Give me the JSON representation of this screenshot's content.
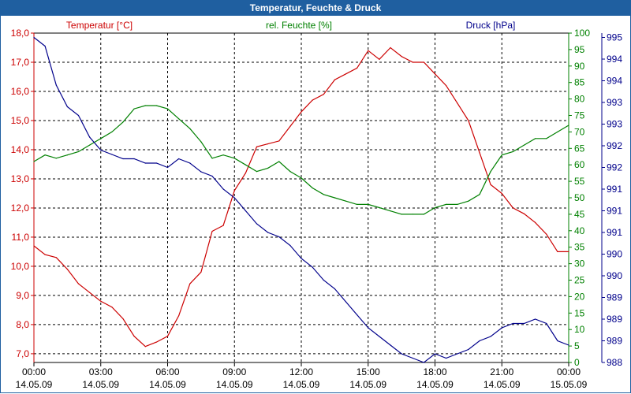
{
  "window_title": "Temperatur, Feuchte & Druck",
  "chart_data": {
    "type": "line",
    "title": "Temperatur, Feuchte & Druck",
    "x_tick_labels": [
      {
        "time": "00:00",
        "date": "14.05.09"
      },
      {
        "time": "03:00",
        "date": "14.05.09"
      },
      {
        "time": "06:00",
        "date": "14.05.09"
      },
      {
        "time": "09:00",
        "date": "14.05.09"
      },
      {
        "time": "12:00",
        "date": "14.05.09"
      },
      {
        "time": "15:00",
        "date": "14.05.09"
      },
      {
        "time": "18:00",
        "date": "14.05.09"
      },
      {
        "time": "21:00",
        "date": "14.05.09"
      },
      {
        "time": "00:00",
        "date": "15.05.09"
      }
    ],
    "x_range_hours": [
      0,
      24
    ],
    "grid": true,
    "axes": {
      "temperature": {
        "label": "Temperatur [°C]",
        "color": "#cc0000",
        "range": [
          6.7,
          18.0
        ],
        "ticks": [
          "7,0",
          "8,0",
          "9,0",
          "10,0",
          "11,0",
          "12,0",
          "13,0",
          "14,0",
          "15,0",
          "16,0",
          "17,0",
          "18,0"
        ],
        "tick_values": [
          7,
          8,
          9,
          10,
          11,
          12,
          13,
          14,
          15,
          16,
          17,
          18
        ]
      },
      "humidity": {
        "label": "rel. Feuchte [%]",
        "color": "#008000",
        "range": [
          0,
          100
        ],
        "ticks": [
          "0",
          "5",
          "10",
          "15",
          "20",
          "25",
          "30",
          "35",
          "40",
          "45",
          "50",
          "55",
          "60",
          "65",
          "70",
          "75",
          "80",
          "85",
          "90",
          "95",
          "100"
        ],
        "tick_values": [
          0,
          5,
          10,
          15,
          20,
          25,
          30,
          35,
          40,
          45,
          50,
          55,
          60,
          65,
          70,
          75,
          80,
          85,
          90,
          95,
          100
        ]
      },
      "pressure": {
        "label": "Druck [hPa]",
        "color": "#00008b",
        "range": [
          988,
          995.6
        ],
        "ticks": [
          "988",
          "989",
          "989",
          "989",
          "990",
          "990",
          "991",
          "991",
          "991",
          "992",
          "992",
          "993",
          "993",
          "994",
          "994",
          "995"
        ],
        "tick_values": [
          988,
          988.5,
          989,
          989.5,
          990,
          990.5,
          991,
          991.5,
          992,
          992.5,
          993,
          993.5,
          994,
          994.5,
          995,
          995.5
        ]
      }
    },
    "series": [
      {
        "name": "Temperatur [°C]",
        "axis": "temperature",
        "color": "#cc0000",
        "x": [
          0,
          0.5,
          1,
          1.5,
          2,
          2.5,
          3,
          3.5,
          4,
          4.5,
          5,
          5.5,
          6,
          6.5,
          7,
          7.5,
          8,
          8.5,
          9,
          9.5,
          10,
          10.5,
          11,
          11.5,
          12,
          12.5,
          13,
          13.5,
          14,
          14.5,
          15,
          15.5,
          16,
          16.5,
          17,
          17.5,
          18,
          18.5,
          19,
          19.5,
          20,
          20.5,
          21,
          21.5,
          22,
          22.5,
          23,
          23.5,
          24
        ],
        "values": [
          10.7,
          10.4,
          10.3,
          9.9,
          9.4,
          9.1,
          8.8,
          8.6,
          8.2,
          7.6,
          7.25,
          7.4,
          7.6,
          8.3,
          9.4,
          9.8,
          11.2,
          11.4,
          12.6,
          13.2,
          14.1,
          14.2,
          14.3,
          14.8,
          15.3,
          15.7,
          15.9,
          16.4,
          16.6,
          16.8,
          17.4,
          17.1,
          17.5,
          17.2,
          17.0,
          17.0,
          16.6,
          16.2,
          15.6,
          15.0,
          13.9,
          12.8,
          12.5,
          12.0,
          11.8,
          11.5,
          11.1,
          10.5,
          10.5
        ]
      },
      {
        "name": "rel. Feuchte [%]",
        "axis": "humidity",
        "color": "#008000",
        "x": [
          0,
          0.5,
          1,
          1.5,
          2,
          2.5,
          3,
          3.5,
          4,
          4.5,
          5,
          5.5,
          6,
          6.5,
          7,
          7.5,
          8,
          8.5,
          9,
          9.5,
          10,
          10.5,
          11,
          11.5,
          12,
          12.5,
          13,
          13.5,
          14,
          14.5,
          15,
          15.5,
          16,
          16.5,
          17,
          17.5,
          18,
          18.5,
          19,
          19.5,
          20,
          20.5,
          21,
          21.5,
          22,
          22.5,
          23,
          23.5,
          24
        ],
        "values": [
          61,
          63,
          62,
          63,
          64,
          66,
          68,
          70,
          73,
          77,
          78,
          78,
          77,
          74,
          71,
          67,
          62,
          63,
          62,
          60,
          58,
          59,
          61,
          58,
          56,
          53,
          51,
          50,
          49,
          48,
          48,
          47,
          46,
          45,
          45,
          45,
          47,
          48,
          48,
          49,
          51,
          58,
          63,
          64,
          66,
          68,
          68,
          70,
          72
        ]
      },
      {
        "name": "Druck [hPa]",
        "axis": "pressure",
        "color": "#00008b",
        "x": [
          0,
          0.5,
          1,
          1.5,
          2,
          2.5,
          3,
          3.5,
          4,
          4.5,
          5,
          5.5,
          6,
          6.5,
          7,
          7.5,
          8,
          8.5,
          9,
          9.5,
          10,
          10.5,
          11,
          11.5,
          12,
          12.5,
          13,
          13.5,
          14,
          14.5,
          15,
          15.5,
          16,
          16.5,
          17,
          17.5,
          18,
          18.5,
          19,
          19.5,
          20,
          20.5,
          21,
          21.5,
          22,
          22.5,
          23,
          23.5,
          24
        ],
        "values": [
          995.5,
          995.3,
          994.4,
          993.9,
          993.7,
          993.2,
          992.9,
          992.8,
          992.7,
          992.7,
          992.6,
          992.6,
          992.5,
          992.7,
          992.6,
          992.4,
          992.3,
          992.0,
          991.8,
          991.5,
          991.2,
          991.0,
          990.9,
          990.7,
          990.4,
          990.2,
          989.9,
          989.7,
          989.4,
          989.1,
          988.8,
          988.6,
          988.4,
          988.2,
          988.1,
          988.0,
          988.2,
          988.1,
          988.2,
          988.3,
          988.5,
          988.6,
          988.8,
          988.9,
          988.9,
          989.0,
          988.9,
          988.5,
          988.4
        ]
      }
    ]
  }
}
